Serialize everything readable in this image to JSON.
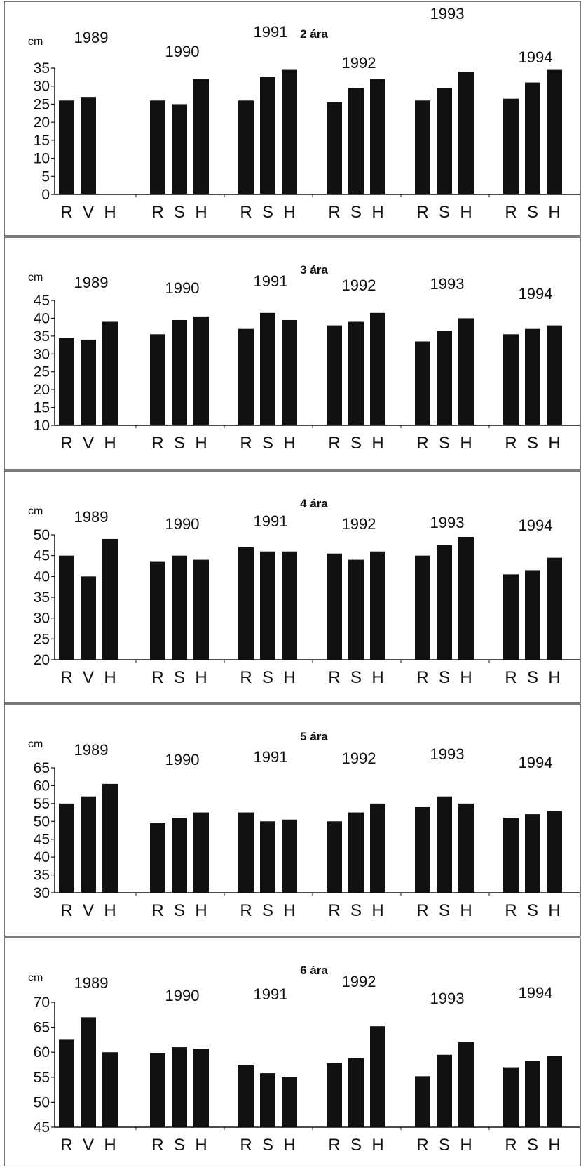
{
  "chart_data": [
    {
      "type": "bar",
      "title": "2 ára",
      "ylabel": "cm",
      "ylim": [
        0,
        35
      ],
      "yticks": [
        0,
        5,
        10,
        15,
        20,
        25,
        30,
        35
      ],
      "groups": [
        {
          "year": "1989",
          "categories": [
            "R",
            "V",
            "H"
          ],
          "values": [
            26,
            27,
            null
          ]
        },
        {
          "year": "1990",
          "categories": [
            "R",
            "S",
            "H"
          ],
          "values": [
            26,
            25,
            32
          ]
        },
        {
          "year": "1991",
          "categories": [
            "R",
            "S",
            "H"
          ],
          "values": [
            26,
            32.5,
            34.5
          ]
        },
        {
          "year": "1992",
          "categories": [
            "R",
            "S",
            "H"
          ],
          "values": [
            25.5,
            29.5,
            32
          ]
        },
        {
          "year": "1993",
          "categories": [
            "R",
            "S",
            "H"
          ],
          "values": [
            26,
            29.5,
            34
          ]
        },
        {
          "year": "1994",
          "categories": [
            "R",
            "S",
            "H"
          ],
          "values": [
            26.5,
            31,
            34.5
          ]
        }
      ]
    },
    {
      "type": "bar",
      "title": "3 ára",
      "ylabel": "cm",
      "ylim": [
        10,
        45
      ],
      "yticks": [
        10,
        15,
        20,
        25,
        30,
        35,
        40,
        45
      ],
      "groups": [
        {
          "year": "1989",
          "categories": [
            "R",
            "V",
            "H"
          ],
          "values": [
            34.5,
            34,
            39
          ]
        },
        {
          "year": "1990",
          "categories": [
            "R",
            "S",
            "H"
          ],
          "values": [
            35.5,
            39.5,
            40.5
          ]
        },
        {
          "year": "1991",
          "categories": [
            "R",
            "S",
            "H"
          ],
          "values": [
            37,
            41.5,
            39.5
          ]
        },
        {
          "year": "1992",
          "categories": [
            "R",
            "S",
            "H"
          ],
          "values": [
            38,
            39,
            41.5
          ]
        },
        {
          "year": "1993",
          "categories": [
            "R",
            "S",
            "H"
          ],
          "values": [
            33.5,
            36.5,
            40
          ]
        },
        {
          "year": "1994",
          "categories": [
            "R",
            "S",
            "H"
          ],
          "values": [
            35.5,
            37,
            38
          ]
        }
      ]
    },
    {
      "type": "bar",
      "title": "4 ára",
      "ylabel": "cm",
      "ylim": [
        20,
        50
      ],
      "yticks": [
        20,
        25,
        30,
        35,
        40,
        45,
        50
      ],
      "groups": [
        {
          "year": "1989",
          "categories": [
            "R",
            "V",
            "H"
          ],
          "values": [
            45,
            40,
            49
          ]
        },
        {
          "year": "1990",
          "categories": [
            "R",
            "S",
            "H"
          ],
          "values": [
            43.5,
            45,
            44
          ]
        },
        {
          "year": "1991",
          "categories": [
            "R",
            "S",
            "H"
          ],
          "values": [
            47,
            46,
            46
          ]
        },
        {
          "year": "1992",
          "categories": [
            "R",
            "S",
            "H"
          ],
          "values": [
            45.5,
            44,
            46
          ]
        },
        {
          "year": "1993",
          "categories": [
            "R",
            "S",
            "H"
          ],
          "values": [
            45,
            47.5,
            49.5
          ]
        },
        {
          "year": "1994",
          "categories": [
            "R",
            "S",
            "H"
          ],
          "values": [
            40.5,
            41.5,
            44.5
          ]
        }
      ]
    },
    {
      "type": "bar",
      "title": "5 ára",
      "ylabel": "cm",
      "ylim": [
        30,
        65
      ],
      "yticks": [
        30,
        35,
        40,
        45,
        50,
        55,
        60,
        65
      ],
      "groups": [
        {
          "year": "1989",
          "categories": [
            "R",
            "V",
            "H"
          ],
          "values": [
            55,
            57,
            60.5
          ]
        },
        {
          "year": "1990",
          "categories": [
            "R",
            "S",
            "H"
          ],
          "values": [
            49.5,
            51,
            52.5
          ]
        },
        {
          "year": "1991",
          "categories": [
            "R",
            "S",
            "H"
          ],
          "values": [
            52.5,
            50,
            50.5
          ]
        },
        {
          "year": "1992",
          "categories": [
            "R",
            "S",
            "H"
          ],
          "values": [
            50,
            52.5,
            55
          ]
        },
        {
          "year": "1993",
          "categories": [
            "R",
            "S",
            "H"
          ],
          "values": [
            54,
            57,
            55
          ]
        },
        {
          "year": "1994",
          "categories": [
            "R",
            "S",
            "H"
          ],
          "values": [
            51,
            52,
            53
          ]
        }
      ]
    },
    {
      "type": "bar",
      "title": "6 ára",
      "ylabel": "cm",
      "ylim": [
        45,
        70
      ],
      "yticks": [
        45,
        50,
        55,
        60,
        65,
        70
      ],
      "groups": [
        {
          "year": "1989",
          "categories": [
            "R",
            "V",
            "H"
          ],
          "values": [
            62.5,
            67,
            60
          ]
        },
        {
          "year": "1990",
          "categories": [
            "R",
            "S",
            "H"
          ],
          "values": [
            59.8,
            61,
            60.7
          ]
        },
        {
          "year": "1991",
          "categories": [
            "R",
            "S",
            "H"
          ],
          "values": [
            57.5,
            55.8,
            55
          ]
        },
        {
          "year": "1992",
          "categories": [
            "R",
            "S",
            "H"
          ],
          "values": [
            57.8,
            58.8,
            65.2
          ]
        },
        {
          "year": "1993",
          "categories": [
            "R",
            "S",
            "H"
          ],
          "values": [
            55.2,
            59.5,
            62
          ]
        },
        {
          "year": "1994",
          "categories": [
            "R",
            "S",
            "H"
          ],
          "values": [
            57,
            58.2,
            59.3
          ]
        }
      ]
    }
  ]
}
